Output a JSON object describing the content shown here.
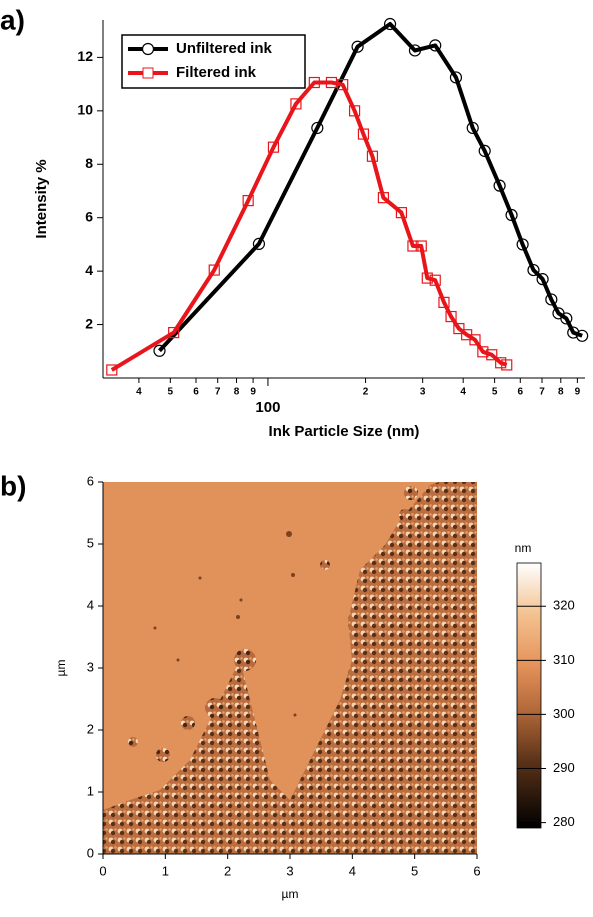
{
  "chart_data": [
    {
      "type": "line",
      "panel_label": "a)",
      "xlabel": "Ink Particle Size (nm)",
      "ylabel": "Intensity %",
      "xscale": "log",
      "xlim": [
        31,
        950
      ],
      "ylim": [
        0,
        13.4
      ],
      "xticks": [
        {
          "value": 40,
          "label": "4"
        },
        {
          "value": 50,
          "label": "5"
        },
        {
          "value": 60,
          "label": "6"
        },
        {
          "value": 70,
          "label": "7"
        },
        {
          "value": 80,
          "label": "8"
        },
        {
          "value": 90,
          "label": "9"
        },
        100,
        {
          "value": 200,
          "label": "2"
        },
        {
          "value": 300,
          "label": "3"
        },
        {
          "value": 400,
          "label": "4"
        },
        {
          "value": 500,
          "label": "5"
        },
        {
          "value": 600,
          "label": "6"
        },
        {
          "value": 700,
          "label": "7"
        },
        {
          "value": 800,
          "label": "8"
        },
        {
          "value": 900,
          "label": "9"
        }
      ],
      "yticks": [
        2,
        4,
        6,
        8,
        10,
        12
      ],
      "legend": "upper left",
      "series": [
        {
          "name": "Unfiltered ink",
          "color": "#000000",
          "marker": "circle",
          "x": [
            46.3,
            93.8,
            142,
            189,
            238,
            284,
            328,
            380,
            428,
            466,
            518,
            564,
            610,
            659,
            703,
            748,
            787,
            832,
            874,
            931
          ],
          "values": [
            1.02,
            5.02,
            9.36,
            12.4,
            13.25,
            12.26,
            12.45,
            11.25,
            9.36,
            8.5,
            7.2,
            6.1,
            5.0,
            4.04,
            3.7,
            2.94,
            2.42,
            2.23,
            1.7,
            1.58
          ]
        },
        {
          "name": "Filtered ink",
          "color": "#e8161b",
          "marker": "square",
          "x": [
            33,
            51.2,
            68.3,
            86.9,
            104,
            122,
            139,
            157,
            170,
            185,
            197,
            210,
            227,
            258,
            280,
            297,
            310,
            328,
            349,
            367,
            388,
            410,
            435,
            460,
            490,
            522,
            545
          ],
          "values": [
            0.3,
            1.7,
            4.04,
            6.64,
            8.64,
            10.26,
            11.06,
            11.06,
            10.98,
            10.0,
            9.13,
            8.3,
            6.75,
            6.19,
            4.94,
            4.94,
            3.74,
            3.66,
            2.83,
            2.3,
            1.85,
            1.62,
            1.43,
            0.98,
            0.87,
            0.57,
            0.49
          ]
        }
      ]
    },
    {
      "type": "image",
      "panel_label": "b)",
      "xlabel": "µm",
      "ylabel": "µm",
      "xlim": [
        0,
        6
      ],
      "ylim": [
        0,
        6
      ],
      "xticks": [
        0,
        1,
        2,
        3,
        4,
        5,
        6
      ],
      "yticks": [
        0,
        1,
        2,
        3,
        4,
        5,
        6
      ],
      "colorbar": {
        "label": "nm",
        "lim": [
          279,
          328
        ],
        "ticks": [
          280,
          290,
          300,
          310,
          320
        ]
      }
    }
  ]
}
